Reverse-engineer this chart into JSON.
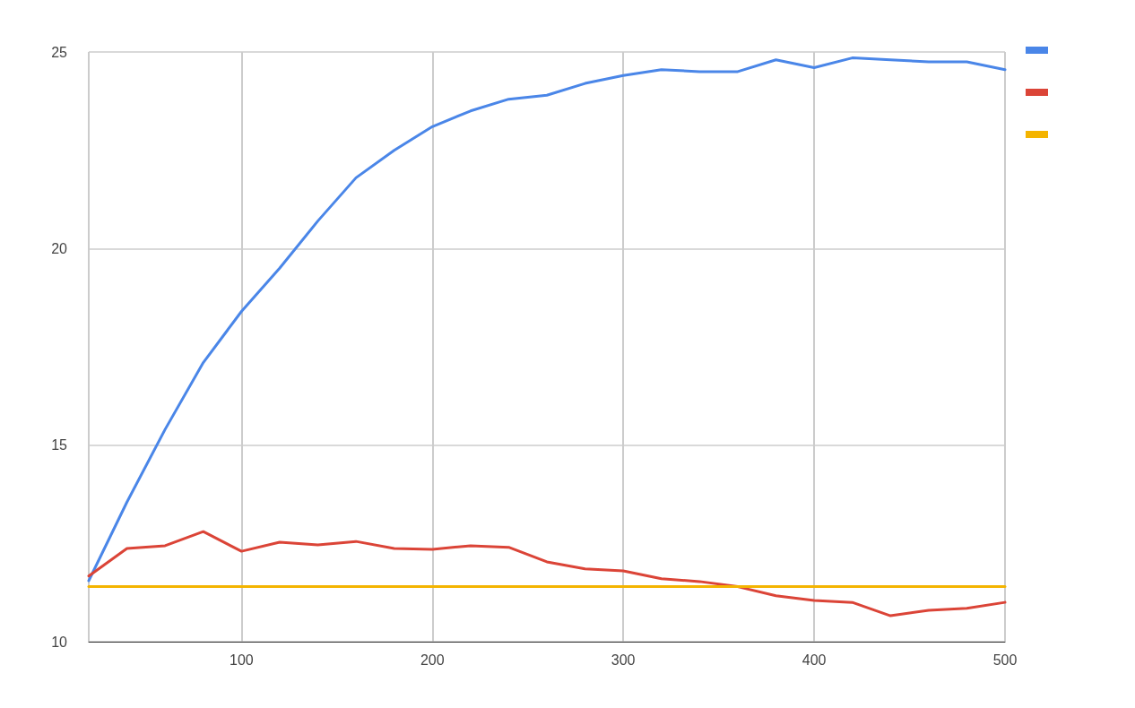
{
  "chart_data": {
    "type": "line",
    "x": [
      20,
      40,
      60,
      80,
      100,
      120,
      140,
      160,
      180,
      200,
      220,
      240,
      260,
      280,
      300,
      320,
      340,
      360,
      380,
      400,
      420,
      440,
      460,
      480,
      500
    ],
    "series": [
      {
        "color": "#4a86e8",
        "values": [
          11.55,
          13.55,
          15.4,
          17.1,
          18.4,
          19.5,
          20.7,
          21.8,
          22.5,
          23.1,
          23.5,
          23.8,
          23.9,
          24.2,
          24.4,
          24.55,
          24.5,
          24.5,
          24.8,
          24.6,
          24.85,
          24.8,
          24.75,
          24.75,
          24.55
        ]
      },
      {
        "color": "#db4437",
        "values": [
          11.67,
          12.37,
          12.44,
          12.8,
          12.3,
          12.53,
          12.46,
          12.55,
          12.37,
          12.35,
          12.44,
          12.4,
          12.03,
          11.85,
          11.8,
          11.6,
          11.53,
          11.4,
          11.17,
          11.05,
          11.0,
          10.66,
          10.8,
          10.85,
          11.0
        ]
      },
      {
        "color": "#f4b400",
        "values": [
          11.4,
          11.4,
          11.4,
          11.4,
          11.4,
          11.4,
          11.4,
          11.4,
          11.4,
          11.4,
          11.4,
          11.4,
          11.4,
          11.4,
          11.4,
          11.4,
          11.4,
          11.4,
          11.4,
          11.4,
          11.4,
          11.4,
          11.4,
          11.4,
          11.4
        ]
      }
    ],
    "xlim": [
      20,
      500
    ],
    "xticks": [
      100,
      200,
      300,
      400,
      500
    ],
    "ylim": [
      10,
      25
    ],
    "yticks": [
      10,
      15,
      20,
      25
    ],
    "grid": true,
    "marker": "none",
    "line_style": "solid"
  }
}
